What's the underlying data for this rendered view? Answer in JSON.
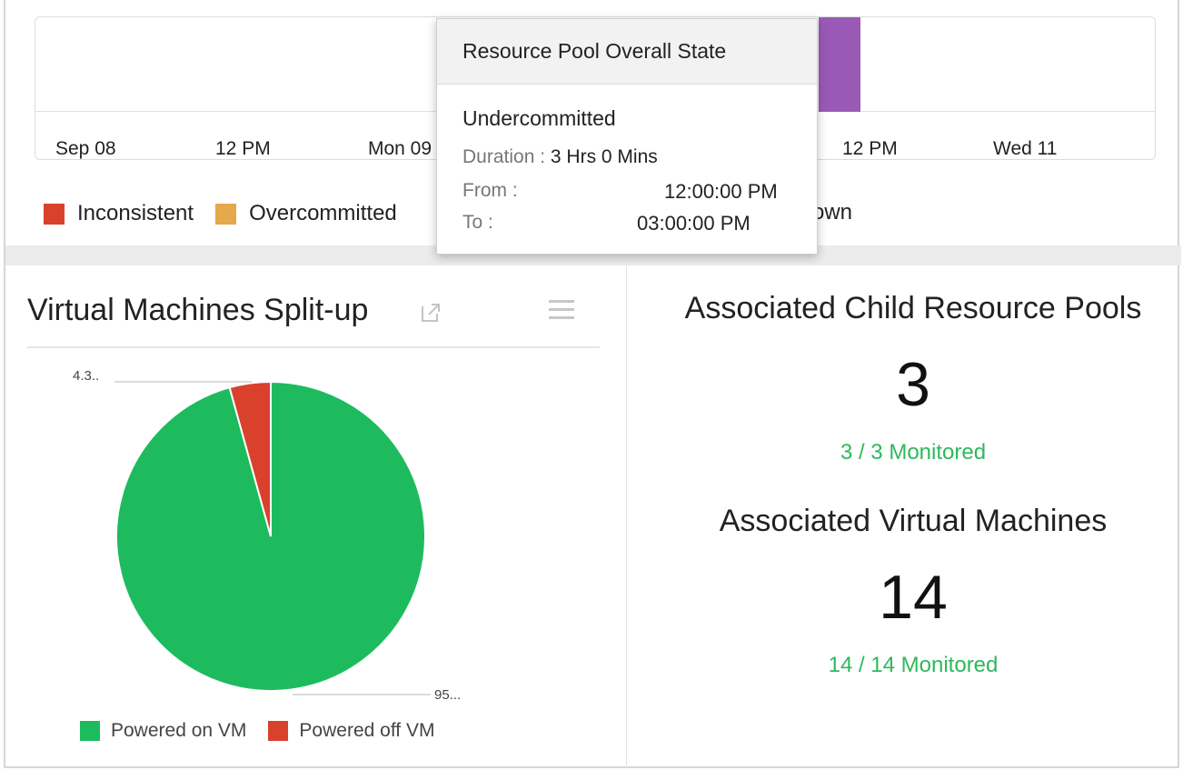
{
  "timeline": {
    "ticks": [
      "Sep 08",
      "12 PM",
      "Mon 09",
      "12 PM",
      "Wed 11"
    ],
    "segment_colors": {
      "purple": "#9b59b6"
    }
  },
  "state_legend": [
    {
      "label": "Inconsistent",
      "color": "#d9412c"
    },
    {
      "label": "Overcommitted",
      "color": "#e4a94a"
    }
  ],
  "legend_fragment": "own",
  "tooltip": {
    "title": "Resource Pool Overall State",
    "state": "Undercommitted",
    "duration_label": "Duration :",
    "duration_value": "3 Hrs 0 Mins",
    "from_label": "From :",
    "from_value": "12:00:00 PM",
    "to_label": "To :",
    "to_value": "03:00:00 PM"
  },
  "vm_panel": {
    "title": "Virtual Machines Split-up",
    "icons": [
      "external-link-icon",
      "menu-icon"
    ]
  },
  "chart_data": {
    "type": "pie",
    "series": [
      {
        "name": "Powered on VM",
        "value": 95.7,
        "color": "#1dbb5e",
        "label": "95..."
      },
      {
        "name": "Powered off VM",
        "value": 4.3,
        "color": "#d9412c",
        "label": "4.3.."
      }
    ],
    "legend_placement": "bottom"
  },
  "associations": {
    "child_pools": {
      "heading": "Associated Child Resource Pools",
      "count": "3",
      "monitored": "3 / 3 Monitored"
    },
    "virtual_machines": {
      "heading": "Associated Virtual Machines",
      "count": "14",
      "monitored": "14 / 14 Monitored"
    }
  }
}
